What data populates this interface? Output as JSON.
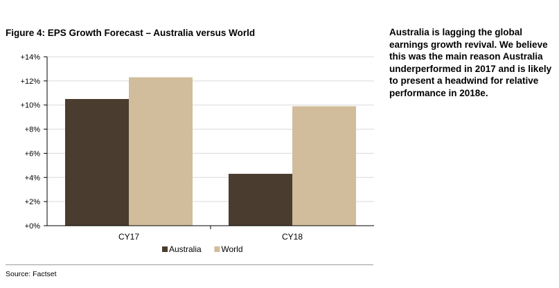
{
  "figure_title": "Figure 4: EPS Growth Forecast – Australia versus World",
  "side_note": "Australia is lagging the global earnings growth revival. We believe this was the main reason Australia underperformed in 2017 and is likely to present a headwind for relative performance in 2018e.",
  "source": "Source: Factset",
  "colors": {
    "australia": "#4a3c2e",
    "world": "#d1bd9b",
    "grid": "#d9d9d9",
    "axis": "#000000"
  },
  "chart_data": {
    "type": "bar",
    "title": "Figure 4: EPS Growth Forecast – Australia versus World",
    "categories": [
      "CY17",
      "CY18"
    ],
    "series": [
      {
        "name": "Australia",
        "values": [
          10.5,
          4.3
        ]
      },
      {
        "name": "World",
        "values": [
          12.3,
          9.9
        ]
      }
    ],
    "ylim": [
      0,
      14
    ],
    "yticks": [
      0,
      2,
      4,
      6,
      8,
      10,
      12,
      14
    ],
    "ytick_labels": [
      "+0%",
      "+2%",
      "+4%",
      "+6%",
      "+8%",
      "+10%",
      "+12%",
      "+14%"
    ],
    "grid": true,
    "legend": "bottom-center"
  }
}
